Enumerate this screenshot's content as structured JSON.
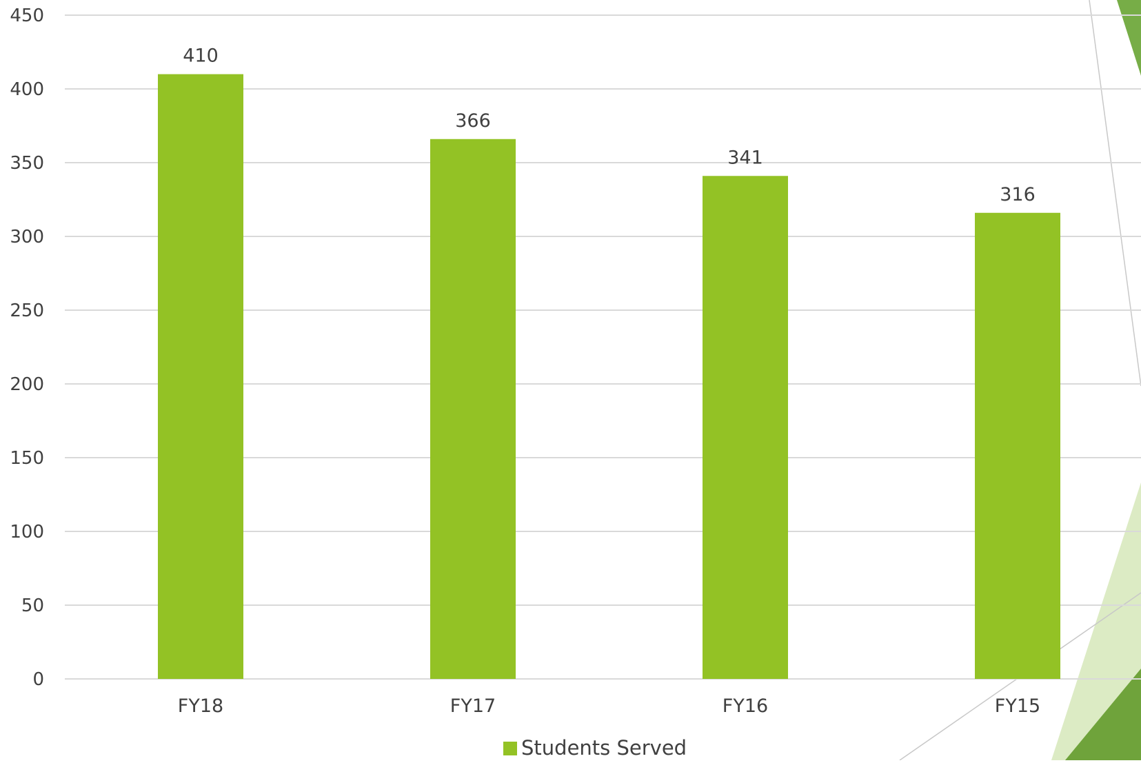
{
  "chart_data": {
    "type": "bar",
    "categories": [
      "FY18",
      "FY17",
      "FY16",
      "FY15"
    ],
    "series": [
      {
        "name": "Students Served",
        "values": [
          410,
          366,
          341,
          316
        ]
      }
    ],
    "data_labels": [
      "410",
      "366",
      "341",
      "316"
    ],
    "yticks": [
      0,
      50,
      100,
      150,
      200,
      250,
      300,
      350,
      400,
      450
    ],
    "ylim": [
      0,
      450
    ],
    "grid": true,
    "legend_position": "bottom",
    "title": "",
    "xlabel": "",
    "ylabel": "",
    "colors": {
      "bar": "#93c225",
      "grid": "#d9d9d9",
      "text": "#404040",
      "decor_dark": "#77ad47",
      "decor_light": "#dcebc4",
      "decor_mid": "#6fa33b"
    }
  }
}
